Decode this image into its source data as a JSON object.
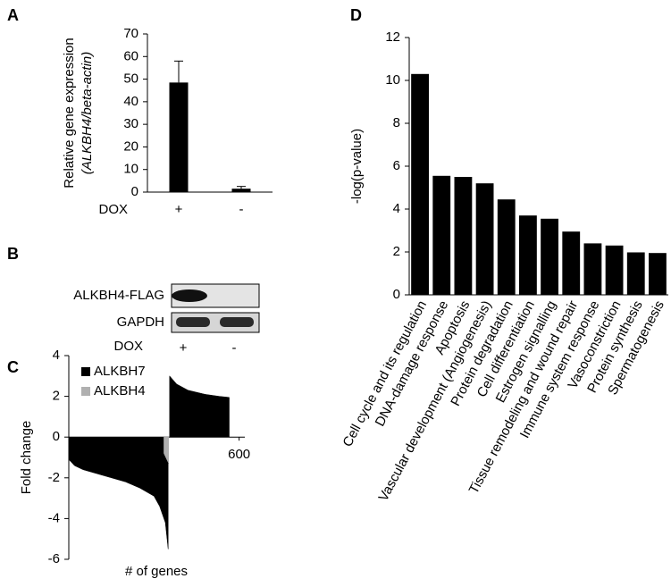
{
  "chart_data": [
    {
      "type": "bar",
      "label": "A",
      "ylabel": [
        "Relative gene expression",
        "(ALKBH4/beta-actin)"
      ],
      "xlabel": "DOX",
      "categories": [
        "+",
        "-"
      ],
      "values": [
        48.5,
        1.5
      ],
      "errors": [
        9.5,
        1.0
      ],
      "color": "#000000",
      "ylim": [
        0,
        70
      ],
      "yticks": [
        0,
        10,
        20,
        30,
        40,
        50,
        60,
        70
      ]
    },
    {
      "type": "area",
      "label": "C",
      "ylabel": "Fold change",
      "xlabel": "# of genes",
      "series": [
        {
          "name": "ALKBH7",
          "color": "#000000",
          "x": [
            0,
            20,
            50,
            100,
            150,
            200,
            250,
            300,
            320,
            340,
            350,
            352,
            355,
            380,
            420,
            480,
            530,
            565
          ],
          "values": [
            -1.1,
            -1.4,
            -1.6,
            -1.8,
            -2.0,
            -2.2,
            -2.5,
            -2.9,
            -3.4,
            -4.2,
            -5.5,
            null,
            3.0,
            2.6,
            2.3,
            2.1,
            2.0,
            1.95
          ]
        },
        {
          "name": "ALKBH4",
          "color": "#b0b0b0",
          "x": [
            335,
            352
          ],
          "values": [
            -0.8,
            -1.3
          ]
        }
      ],
      "xlim": [
        0,
        620
      ],
      "xticks": [
        600
      ],
      "ylim": [
        -6,
        4
      ],
      "yticks": [
        -6,
        -4,
        -2,
        0,
        2,
        4
      ],
      "legend": "upper left"
    },
    {
      "type": "bar",
      "label": "D",
      "ylabel": "-log(p-value)",
      "categories": [
        "Cell cycle and its regulation",
        "DNA-damage response",
        "Apoptosis",
        "Vascular development (Angiogenesis)",
        "Protein degradation",
        "Cell differentiation",
        "Estrogen signalling",
        "Tissue remodeling and wound repair",
        "Immune system response",
        "Vasoconstriction",
        "Protein synthesis",
        "Spermatogenesis"
      ],
      "values": [
        10.3,
        5.55,
        5.5,
        5.2,
        4.45,
        3.7,
        3.55,
        2.95,
        2.4,
        2.3,
        1.98,
        1.95
      ],
      "color": "#000000",
      "ylim": [
        0,
        12
      ],
      "yticks": [
        0,
        2,
        4,
        6,
        8,
        10,
        12
      ]
    }
  ],
  "blot": {
    "label": "B",
    "rows": [
      "ALKBH4-FLAG",
      "GAPDH"
    ],
    "xlabel": "DOX",
    "lanes": [
      "+",
      "-"
    ]
  }
}
